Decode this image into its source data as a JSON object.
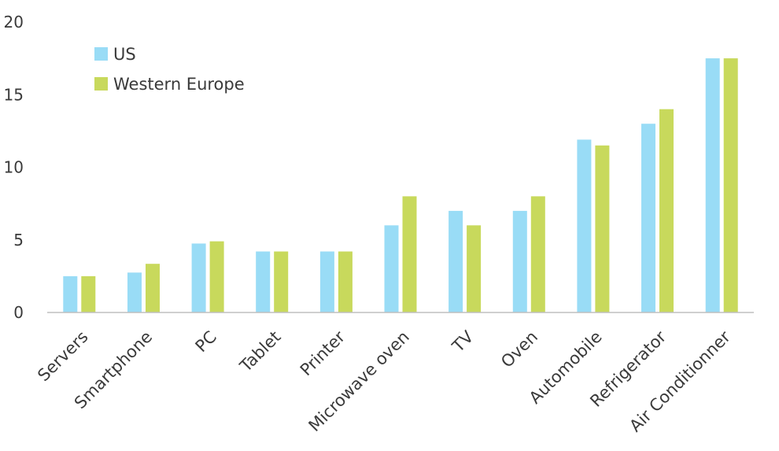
{
  "chart_data": {
    "type": "bar",
    "categories": [
      "Servers",
      "Smartphone",
      "PC",
      "Tablet",
      "Printer",
      "Microwave oven",
      "TV",
      "Oven",
      "Automobile",
      "Refrigerator",
      "Air Conditionner"
    ],
    "series": [
      {
        "name": "US",
        "color": "#99dcf6",
        "values": [
          2.5,
          2.75,
          4.75,
          4.2,
          4.2,
          6,
          7,
          7,
          11.9,
          13,
          17.5
        ]
      },
      {
        "name": "Western Europe",
        "color": "#c8d95c",
        "values": [
          2.5,
          3.35,
          4.9,
          4.2,
          4.2,
          8,
          6,
          8,
          11.5,
          14,
          17.5
        ]
      }
    ],
    "title": "",
    "xlabel": "",
    "ylabel": "",
    "ylim": [
      0,
      20
    ],
    "yticks": [
      "0",
      "5",
      "10",
      "15",
      "20"
    ],
    "grid": false,
    "legend_placement": "top-left"
  }
}
